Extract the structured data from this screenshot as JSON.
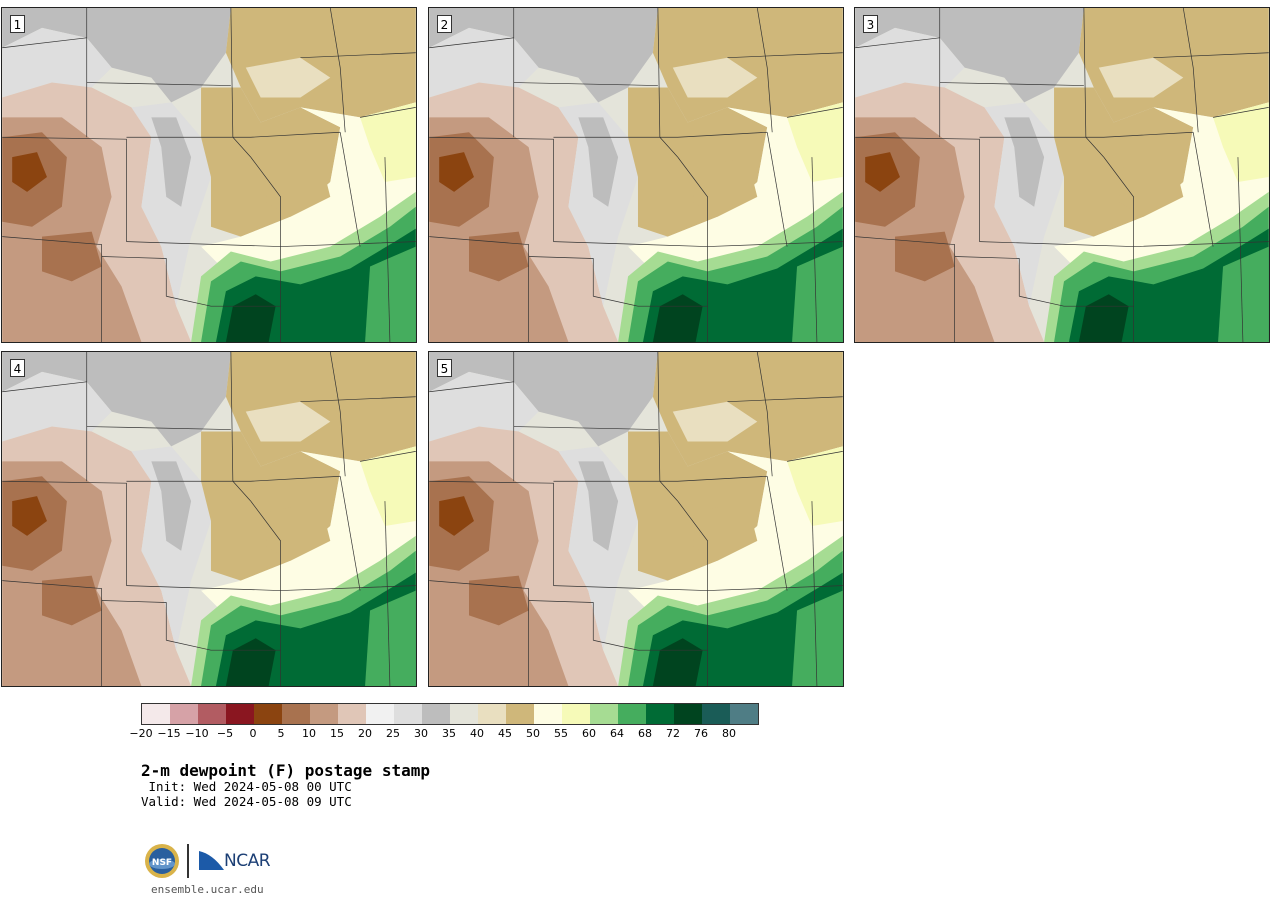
{
  "panels": [
    {
      "label": "1"
    },
    {
      "label": "2"
    },
    {
      "label": "3"
    },
    {
      "label": "4"
    },
    {
      "label": "5"
    }
  ],
  "colorbar": {
    "colors": [
      "#f4e9ea",
      "#d6a2a7",
      "#b25c62",
      "#8a1620",
      "#8b4410",
      "#a8724f",
      "#c49a80",
      "#e0c6b7",
      "#f1f1f1",
      "#dedede",
      "#bdbdbd",
      "#e4e4da",
      "#e9dfc0",
      "#cfb77a",
      "#fefde4",
      "#f6fab8",
      "#a6dc93",
      "#45ad5e",
      "#006b35",
      "#00441f",
      "#1a5c57",
      "#4f7d85"
    ],
    "tick_labels": [
      "−20",
      "−15",
      "−10",
      "−5",
      "0",
      "5",
      "10",
      "15",
      "20",
      "25",
      "30",
      "35",
      "40",
      "45",
      "50",
      "55",
      "60",
      "64",
      "68",
      "72",
      "76",
      "80"
    ]
  },
  "title": "2-m dewpoint (F) postage stamp",
  "init": " Init: Wed 2024-05-08 00 UTC",
  "valid": "Valid: Wed 2024-05-08 09 UTC",
  "logo_nsf": "NSF",
  "logo_ncar": "NCAR",
  "website": "ensemble.ucar.edu"
}
